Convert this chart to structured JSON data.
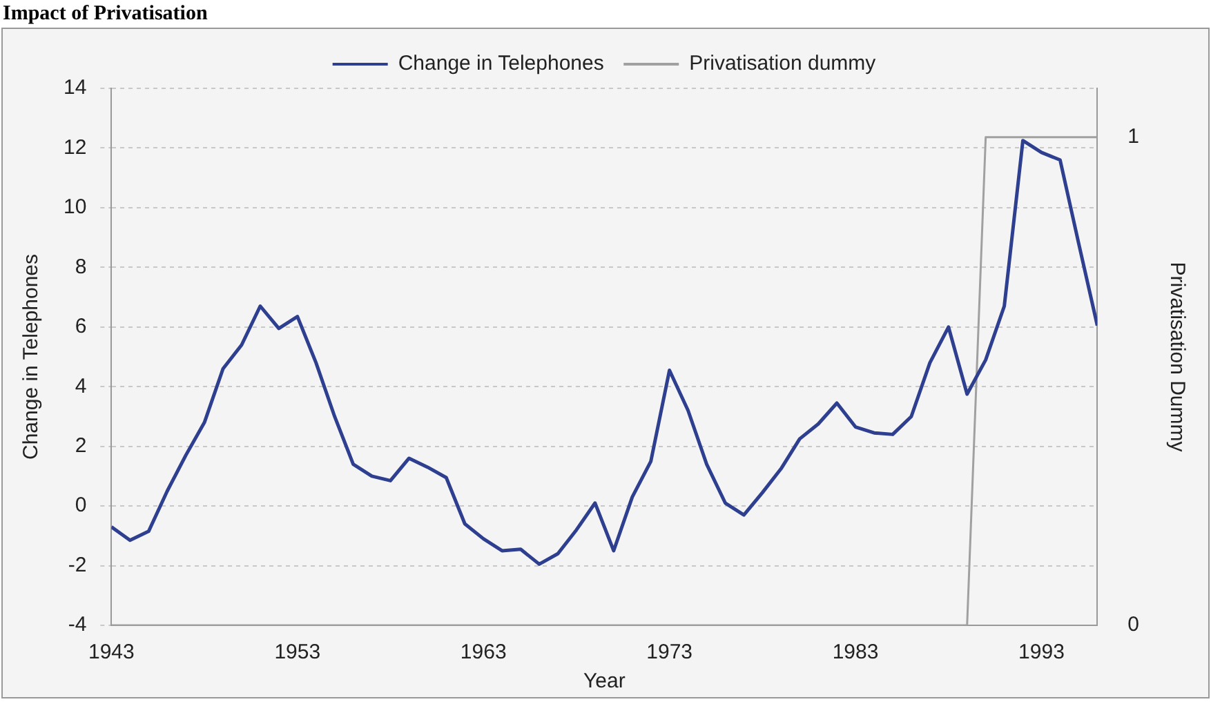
{
  "chart_data": {
    "type": "line",
    "title": "Impact of Privatisation",
    "xlabel": "Year",
    "ylabel": "Change in Telephones",
    "y2label": "Privatisation Dummy",
    "x": [
      1943,
      1944,
      1945,
      1946,
      1947,
      1948,
      1949,
      1950,
      1951,
      1952,
      1953,
      1954,
      1955,
      1956,
      1957,
      1958,
      1959,
      1960,
      1961,
      1962,
      1963,
      1964,
      1965,
      1966,
      1967,
      1968,
      1969,
      1970,
      1971,
      1972,
      1973,
      1974,
      1975,
      1976,
      1977,
      1978,
      1979,
      1980,
      1981,
      1982,
      1983,
      1984,
      1985,
      1986,
      1987,
      1988,
      1989,
      1990,
      1991,
      1992,
      1993,
      1994,
      1995,
      1996
    ],
    "series": [
      {
        "name": "Change in Telephones",
        "color": "#2e3f8f",
        "values": [
          -0.7,
          -1.15,
          -0.85,
          0.5,
          1.7,
          2.8,
          4.6,
          5.4,
          6.7,
          5.95,
          6.35,
          4.8,
          3.0,
          1.4,
          1.0,
          0.85,
          1.6,
          1.3,
          0.95,
          -0.6,
          -1.1,
          -1.5,
          -1.45,
          -1.95,
          -1.6,
          -0.8,
          0.1,
          -1.5,
          0.3,
          1.5,
          4.55,
          3.2,
          1.4,
          0.1,
          -0.3,
          0.45,
          1.25,
          2.25,
          2.75,
          3.45,
          2.65,
          2.45,
          2.4,
          3.0,
          4.8,
          6.0,
          3.75,
          4.9,
          6.7,
          12.25,
          11.85,
          11.6,
          8.8,
          6.05
        ]
      },
      {
        "name": "Privatisation dummy",
        "color": "#a0a0a0",
        "axis": "y2",
        "values": [
          0,
          0,
          0,
          0,
          0,
          0,
          0,
          0,
          0,
          0,
          0,
          0,
          0,
          0,
          0,
          0,
          0,
          0,
          0,
          0,
          0,
          0,
          0,
          0,
          0,
          0,
          0,
          0,
          0,
          0,
          0,
          0,
          0,
          0,
          0,
          0,
          0,
          0,
          0,
          0,
          0,
          0,
          0,
          0,
          0,
          0,
          0,
          1,
          1,
          1,
          1,
          1,
          1,
          1
        ]
      }
    ],
    "xlim": [
      1943,
      1996
    ],
    "xticks": [
      1943,
      1953,
      1963,
      1973,
      1983,
      1993
    ],
    "ylim": [
      -4,
      14
    ],
    "yticks": [
      -4,
      -2,
      0,
      2,
      4,
      6,
      8,
      10,
      12,
      14
    ],
    "y2lim": [
      0,
      1.1
    ],
    "y2ticks": [
      0,
      1
    ],
    "grid": "y",
    "legend": "top",
    "marker": "none",
    "line_style": "solid"
  }
}
